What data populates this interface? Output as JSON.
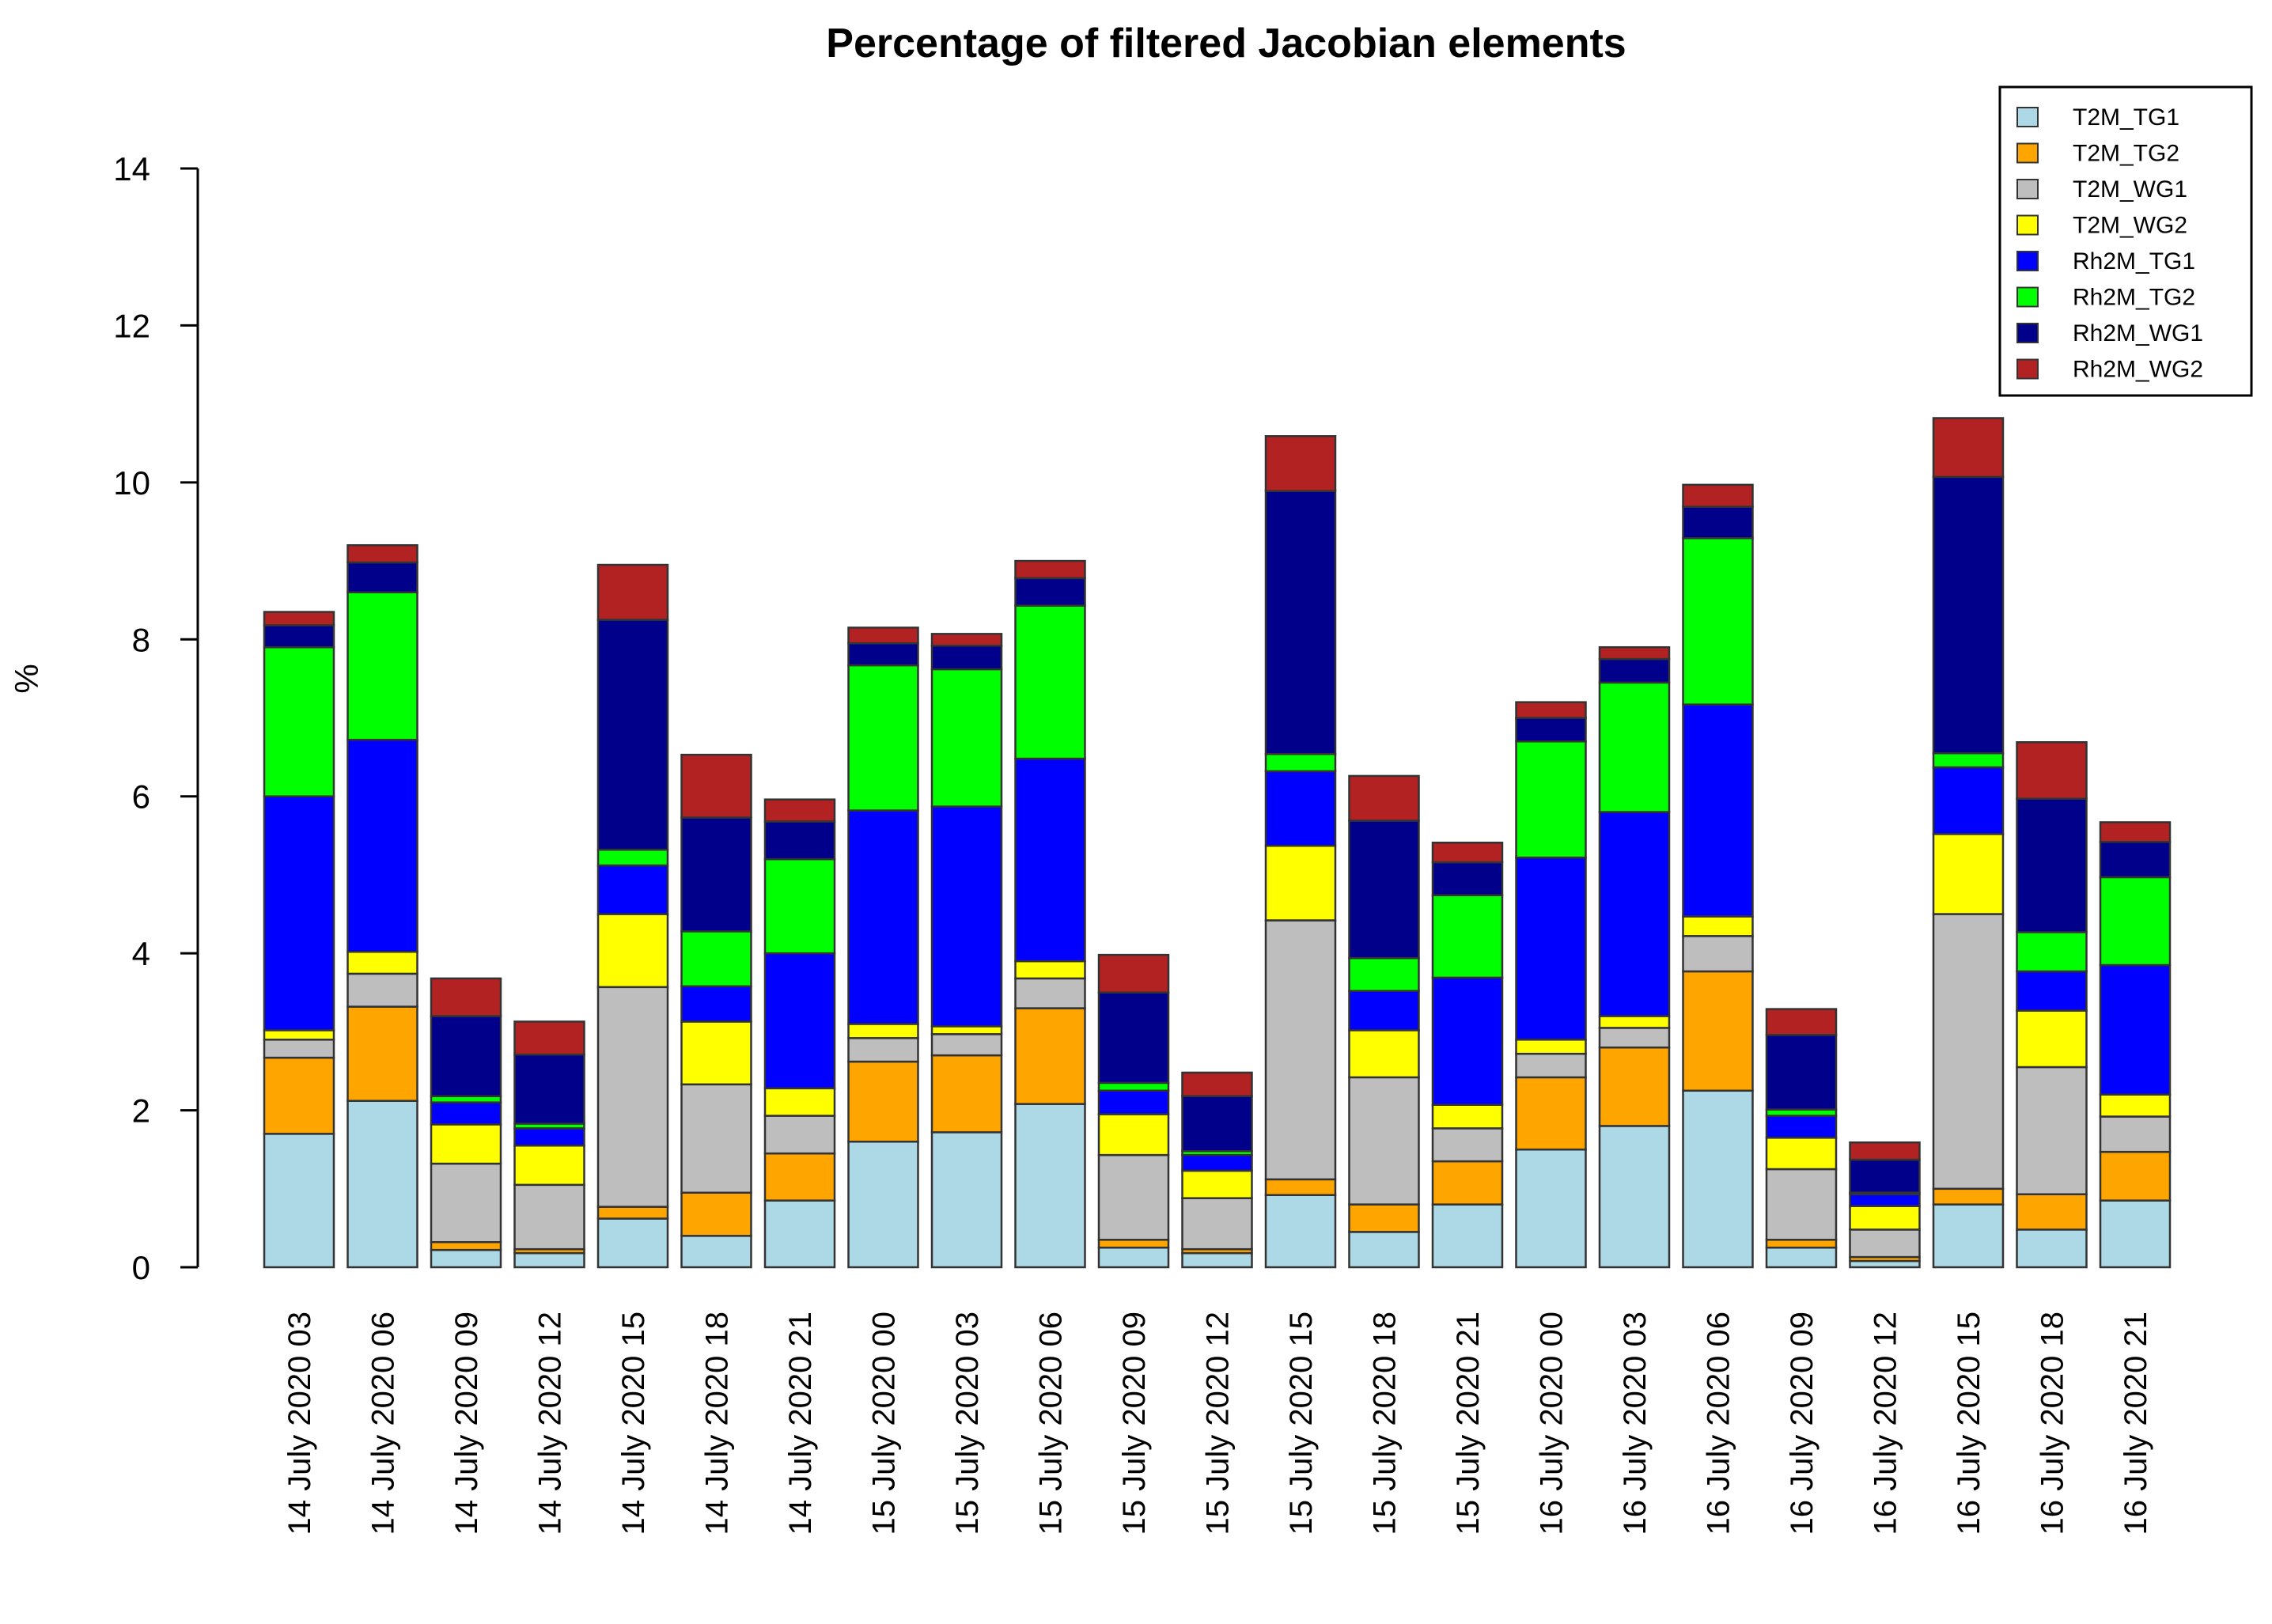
{
  "chart_data": {
    "type": "bar",
    "stacked": true,
    "title": "Percentage of filtered Jacobian elements",
    "xlabel": "",
    "ylabel": "%",
    "ylim": [
      0,
      14
    ],
    "yticks": [
      0,
      2,
      4,
      6,
      8,
      10,
      12,
      14
    ],
    "legend_position": "top-right",
    "categories": [
      "14 July 2020 03",
      "14 July 2020 06",
      "14 July 2020 09",
      "14 July 2020 12",
      "14 July 2020 15",
      "14 July 2020 18",
      "14 July 2020 21",
      "15 July 2020 00",
      "15 July 2020 03",
      "15 July 2020 06",
      "15 July 2020 09",
      "15 July 2020 12",
      "15 July 2020 15",
      "15 July 2020 18",
      "15 July 2020 21",
      "16 July 2020 00",
      "16 July 2020 03",
      "16 July 2020 06",
      "16 July 2020 09",
      "16 July 2020 12",
      "16 July 2020 15",
      "16 July 2020 18",
      "16 July 2020 21"
    ],
    "series": [
      {
        "name": "T2M_TG1",
        "color": "#add8e6",
        "values": [
          1.7,
          2.12,
          0.22,
          0.18,
          0.62,
          0.4,
          0.85,
          1.6,
          1.72,
          2.08,
          0.25,
          0.18,
          0.92,
          0.45,
          0.8,
          1.5,
          1.8,
          2.25,
          0.25,
          0.08,
          0.8,
          0.48,
          0.85
        ]
      },
      {
        "name": "T2M_TG2",
        "color": "#ffa500",
        "values": [
          0.97,
          1.2,
          0.1,
          0.05,
          0.15,
          0.55,
          0.6,
          1.02,
          0.98,
          1.22,
          0.1,
          0.05,
          0.2,
          0.35,
          0.55,
          0.92,
          1.0,
          1.52,
          0.1,
          0.05,
          0.2,
          0.45,
          0.62
        ]
      },
      {
        "name": "T2M_WG1",
        "color": "#bebebe",
        "values": [
          0.23,
          0.42,
          1.0,
          0.82,
          2.8,
          1.38,
          0.48,
          0.3,
          0.27,
          0.38,
          1.08,
          0.65,
          3.3,
          1.62,
          0.42,
          0.3,
          0.25,
          0.45,
          0.9,
          0.35,
          3.5,
          1.62,
          0.45
        ]
      },
      {
        "name": "T2M_WG2",
        "color": "#ffff00",
        "values": [
          0.12,
          0.28,
          0.5,
          0.5,
          0.93,
          0.8,
          0.35,
          0.18,
          0.1,
          0.22,
          0.52,
          0.35,
          0.95,
          0.6,
          0.3,
          0.18,
          0.15,
          0.25,
          0.4,
          0.3,
          1.02,
          0.72,
          0.28
        ]
      },
      {
        "name": "Rh2M_TG1",
        "color": "#0000ff",
        "values": [
          2.98,
          2.7,
          0.28,
          0.22,
          0.62,
          0.45,
          1.72,
          2.72,
          2.8,
          2.58,
          0.3,
          0.2,
          0.95,
          0.5,
          1.62,
          2.32,
          2.6,
          2.7,
          0.28,
          0.15,
          0.85,
          0.5,
          1.65
        ]
      },
      {
        "name": "Rh2M_TG2",
        "color": "#00ff00",
        "values": [
          1.9,
          1.88,
          0.08,
          0.06,
          0.2,
          0.7,
          1.2,
          1.85,
          1.75,
          1.95,
          0.1,
          0.05,
          0.22,
          0.42,
          1.05,
          1.48,
          1.65,
          2.12,
          0.08,
          0.02,
          0.18,
          0.5,
          1.12
        ]
      },
      {
        "name": "Rh2M_WG1",
        "color": "#00008b",
        "values": [
          0.28,
          0.38,
          1.02,
          0.88,
          2.93,
          1.45,
          0.48,
          0.28,
          0.3,
          0.35,
          1.15,
          0.7,
          3.35,
          1.75,
          0.42,
          0.3,
          0.3,
          0.4,
          0.95,
          0.42,
          3.52,
          1.7,
          0.45
        ]
      },
      {
        "name": "Rh2M_WG2",
        "color": "#b22222",
        "values": [
          0.17,
          0.22,
          0.48,
          0.42,
          0.7,
          0.8,
          0.28,
          0.2,
          0.15,
          0.22,
          0.48,
          0.3,
          0.7,
          0.57,
          0.25,
          0.2,
          0.15,
          0.28,
          0.33,
          0.22,
          0.75,
          0.72,
          0.25
        ]
      }
    ]
  }
}
